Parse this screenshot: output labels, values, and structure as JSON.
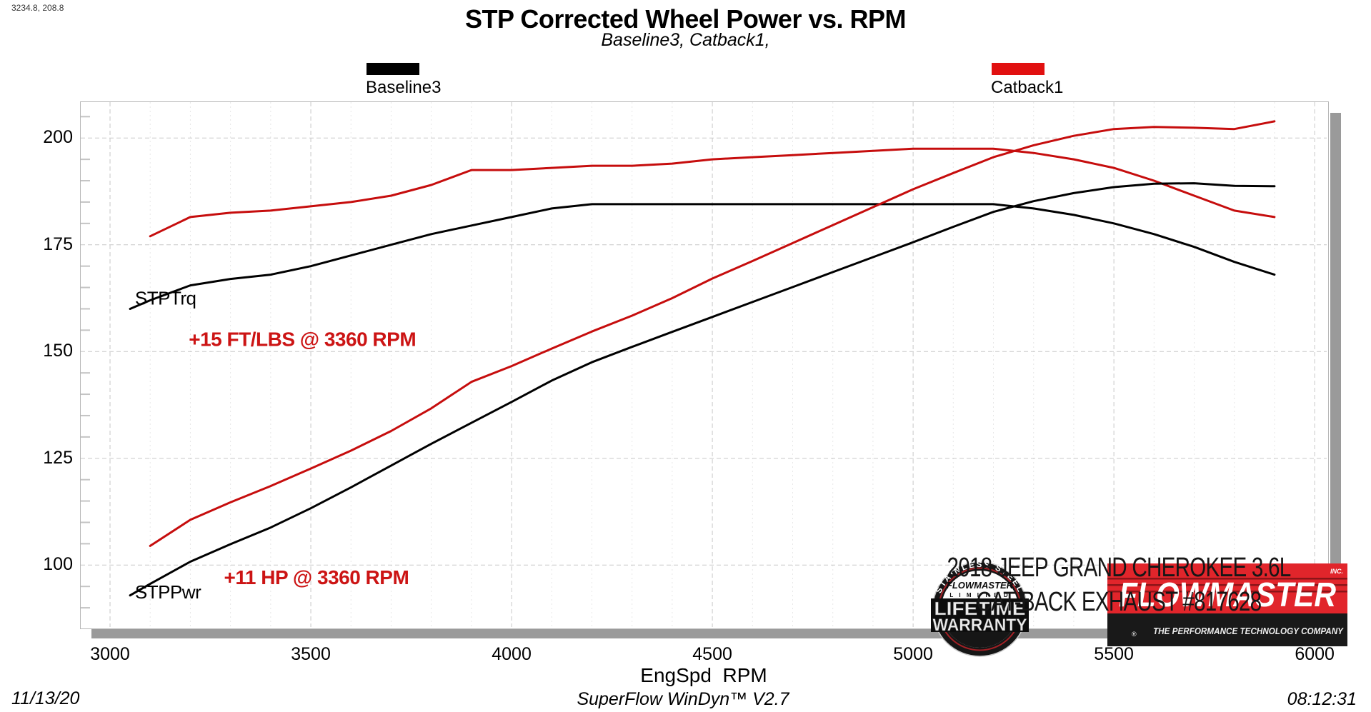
{
  "header": {
    "cursor_readout": "3234.8, 208.8",
    "title": "STP Corrected Wheel Power vs. RPM",
    "subtitle": "Baseline3, Catback1,"
  },
  "legend": {
    "items": [
      {
        "label": "Baseline3",
        "color": "#000000"
      },
      {
        "label": "Catback1",
        "color": "#e11010"
      }
    ]
  },
  "axis": {
    "x_label": "EngSpd  RPM"
  },
  "footer": {
    "date": "11/13/20",
    "app": "SuperFlow WinDyn™ V2.7",
    "time": "08:12:31"
  },
  "branding": {
    "badge": {
      "arc_text": "STAINLESS STEEL",
      "brand": "FLOWMASTER",
      "limited": "L I M I T E D",
      "line1": "LIFETIME",
      "line2": "WARRANTY"
    },
    "logo": {
      "brand": "FLOWMASTER",
      "inc": "INC.",
      "reg": "®",
      "tagline": "THE PERFORMANCE TECHNOLOGY COMPANY",
      "red": "#e1252b",
      "dark": "#191919"
    },
    "vehicle_line1": "2018 JEEP GRAND CHEROKEE 3.6L",
    "vehicle_line2": "CAT-BACK EXHAUST #817628"
  },
  "chart_data": {
    "type": "line",
    "title": "STP Corrected Wheel Power vs. RPM",
    "subtitle": "Baseline3, Catback1,",
    "xlabel": "EngSpd  RPM",
    "ylabel": "",
    "x_range": [
      2927,
      6030
    ],
    "y_range": [
      85.5,
      208.4
    ],
    "x_ticks": [
      3000,
      3500,
      4000,
      4500,
      5000,
      5500,
      6000
    ],
    "x_minor_step": 100,
    "y_ticks": [
      100,
      125,
      150,
      175,
      200
    ],
    "y_minor_step": 5,
    "grid": true,
    "legend_position": "top",
    "series": [
      {
        "name": "Baseline3 STPTrq",
        "color": "#000000",
        "width": 3,
        "x": [
          3050,
          3100,
          3200,
          3300,
          3400,
          3500,
          3600,
          3700,
          3800,
          3900,
          4000,
          4100,
          4200,
          4300,
          4400,
          4500,
          4600,
          4700,
          4800,
          4900,
          5000,
          5100,
          5200,
          5300,
          5400,
          5500,
          5600,
          5700,
          5800,
          5900
        ],
        "values": [
          160,
          162,
          165.5,
          167,
          168,
          170,
          172.5,
          175,
          177.5,
          179.5,
          181.5,
          183.5,
          184.5,
          184.5,
          184.5,
          184.5,
          184.5,
          184.5,
          184.5,
          184.5,
          184.5,
          184.5,
          184.5,
          183.5,
          182,
          180,
          177.5,
          174.5,
          171,
          168
        ]
      },
      {
        "name": "Catback1 STPTrq",
        "color": "#c60d0d",
        "width": 3,
        "x": [
          3100,
          3200,
          3300,
          3400,
          3500,
          3600,
          3700,
          3800,
          3900,
          4000,
          4100,
          4200,
          4300,
          4400,
          4500,
          4600,
          4700,
          4800,
          4900,
          5000,
          5100,
          5200,
          5300,
          5400,
          5500,
          5600,
          5700,
          5800,
          5900
        ],
        "values": [
          177,
          181.5,
          182.5,
          183,
          184,
          185,
          186.5,
          189,
          192.5,
          192.5,
          193,
          193.5,
          193.5,
          194,
          195,
          195.5,
          196,
          196.5,
          197,
          197.5,
          197.5,
          197.5,
          196.5,
          195,
          193,
          190,
          186.5,
          183,
          181.5
        ]
      },
      {
        "name": "Baseline3 STPPwr",
        "color": "#000000",
        "width": 3,
        "x": [
          3050,
          3100,
          3200,
          3300,
          3400,
          3500,
          3600,
          3700,
          3800,
          3900,
          4000,
          4100,
          4200,
          4300,
          4400,
          4500,
          4600,
          4700,
          4800,
          4900,
          5000,
          5100,
          5200,
          5300,
          5400,
          5500,
          5600,
          5700,
          5800,
          5900
        ],
        "values": [
          92.9,
          95.6,
          100.8,
          104.9,
          108.8,
          113.3,
          118.2,
          123.3,
          128.4,
          133.3,
          138.2,
          143.2,
          147.5,
          151.1,
          154.6,
          158.1,
          161.6,
          165.1,
          168.6,
          172.1,
          175.6,
          179.2,
          182.7,
          185.2,
          187.1,
          188.5,
          189.3,
          189.4,
          188.8,
          188.7
        ]
      },
      {
        "name": "Catback1 STPPwr",
        "color": "#c60d0d",
        "width": 3,
        "x": [
          3100,
          3200,
          3300,
          3400,
          3500,
          3600,
          3700,
          3800,
          3900,
          4000,
          4100,
          4200,
          4300,
          4400,
          4500,
          4600,
          4700,
          4800,
          4900,
          5000,
          5100,
          5200,
          5300,
          5400,
          5500,
          5600,
          5700,
          5800,
          5900
        ],
        "values": [
          104.5,
          110.6,
          114.7,
          118.5,
          122.6,
          126.8,
          131.4,
          136.7,
          142.9,
          146.6,
          150.7,
          154.7,
          158.4,
          162.5,
          167.1,
          171.2,
          175.4,
          179.6,
          183.8,
          188,
          191.8,
          195.5,
          198.3,
          200.5,
          202.1,
          202.6,
          202.4,
          202.1,
          203.9
        ]
      }
    ],
    "annotations": [
      {
        "text": "STPTrq",
        "x": 3062,
        "y": 161,
        "color": "#000000",
        "size": 26,
        "weight": "normal",
        "anchor": "start"
      },
      {
        "text": "+15 FT/LBS @ 3360 RPM",
        "x": 3479,
        "y": 151.3,
        "color": "#cc1414",
        "size": 28,
        "weight": "bold",
        "anchor": "middle"
      },
      {
        "text": "STPPwr",
        "x": 3062,
        "y": 92.2,
        "color": "#000000",
        "size": 26,
        "weight": "normal",
        "anchor": "start"
      },
      {
        "text": "+11 HP @ 3360 RPM",
        "x": 3514,
        "y": 95.5,
        "color": "#cc1414",
        "size": 28,
        "weight": "bold",
        "anchor": "middle"
      }
    ]
  }
}
